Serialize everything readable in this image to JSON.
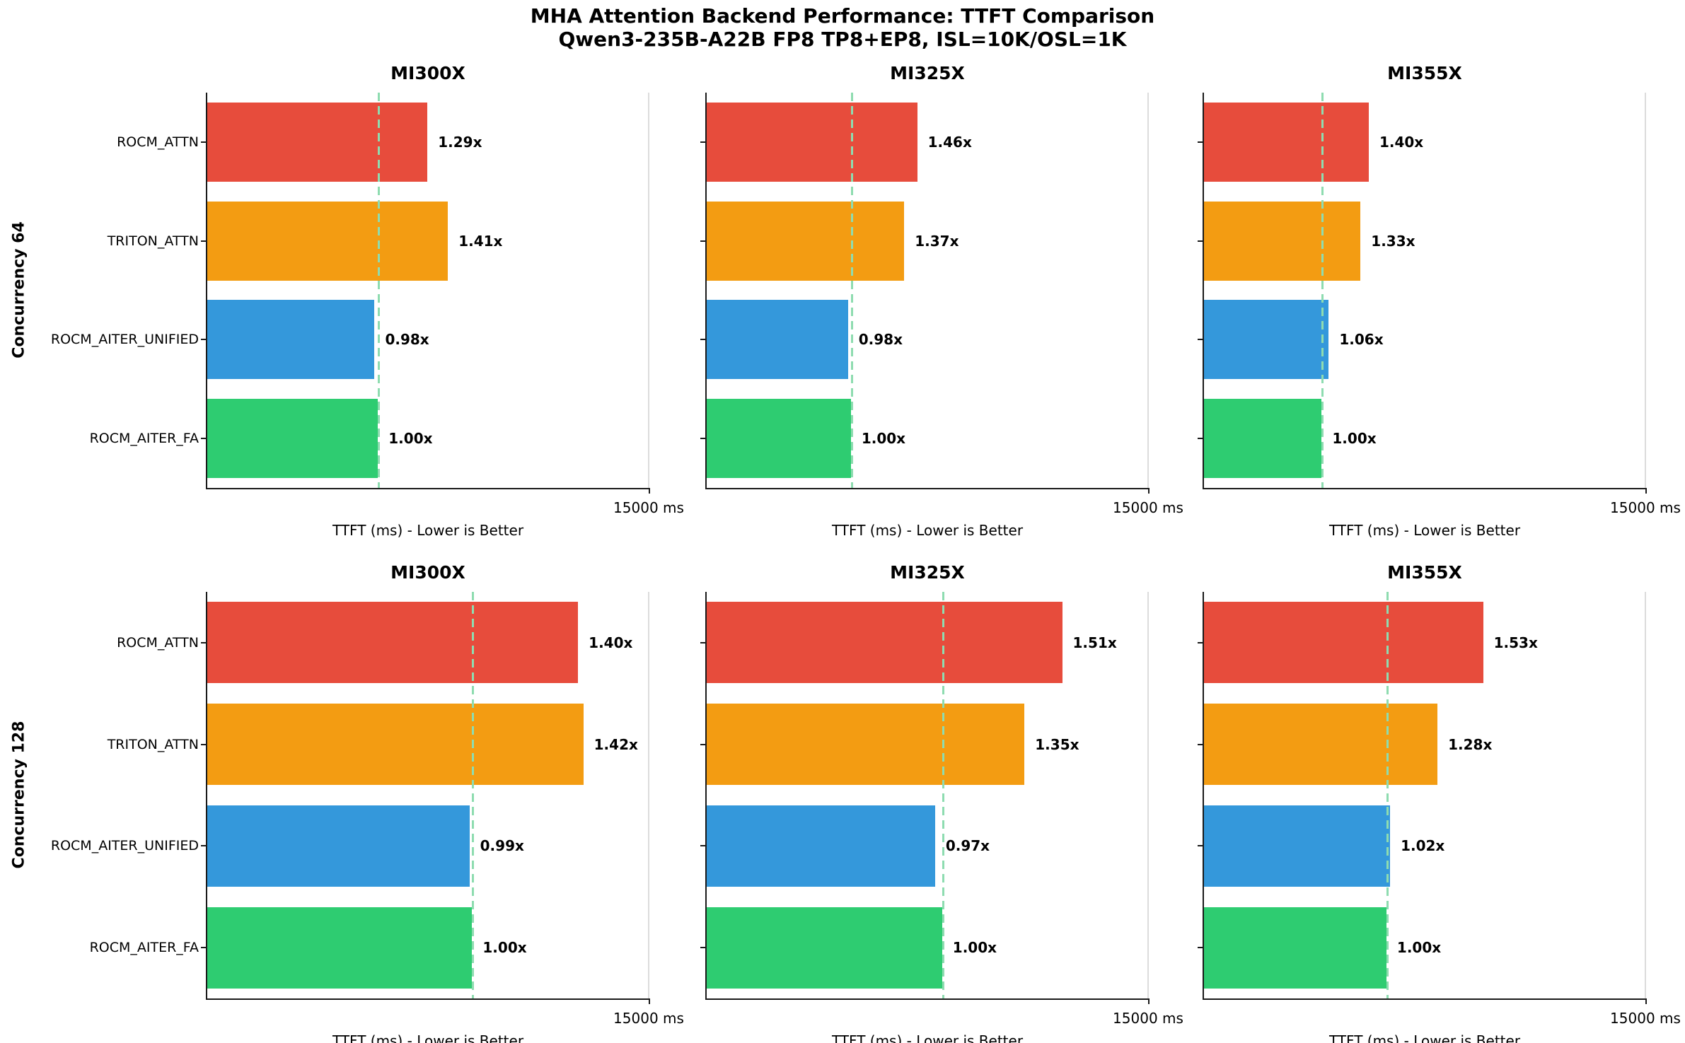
{
  "chart_data": {
    "type": "bar",
    "orientation": "horizontal",
    "title": "MHA Attention Backend Performance: TTFT Comparison",
    "subtitle": "Qwen3-235B-A22B FP8 TP8+EP8, ISL=10K/OSL=1K",
    "xlabel": "TTFT (ms) - Lower is Better",
    "xlim": [
      0,
      15000
    ],
    "x_tick_label": "15000 ms",
    "grid_on": false,
    "legend": "none",
    "categories": [
      "ROCM_ATTN",
      "TRITON_ATTN",
      "ROCM_AITER_UNIFIED",
      "ROCM_AITER_FA"
    ],
    "bar_colors": [
      "#e74c3c",
      "#f39c12",
      "#3498db",
      "#2ecc71"
    ],
    "baseline_color": "#8edcb0",
    "spine_color": "#1a1a1a",
    "axis_max_line_color": "#dcdcdc",
    "baseline_note": "dashed line marks ROCM_AITER_FA (1.00x) TTFT",
    "grid": [
      {
        "row_label": "Concurrency 64",
        "subplots": [
          {
            "title": "MI300X",
            "baseline_ttft_ms_est": 5800,
            "ratios": [
              1.29,
              1.41,
              0.98,
              1.0
            ],
            "speedup_labels": [
              "1.29x",
              "1.41x",
              "0.98x",
              "1.00x"
            ],
            "ttft_ms_est": [
              7480,
              8180,
              5680,
              5800
            ]
          },
          {
            "title": "MI325X",
            "baseline_ttft_ms_est": 4900,
            "ratios": [
              1.46,
              1.37,
              0.98,
              1.0
            ],
            "speedup_labels": [
              "1.46x",
              "1.37x",
              "0.98x",
              "1.00x"
            ],
            "ttft_ms_est": [
              7150,
              6710,
              4800,
              4900
            ]
          },
          {
            "title": "MI355X",
            "baseline_ttft_ms_est": 4000,
            "ratios": [
              1.4,
              1.33,
              1.06,
              1.0
            ],
            "speedup_labels": [
              "1.40x",
              "1.33x",
              "1.06x",
              "1.00x"
            ],
            "ttft_ms_est": [
              5600,
              5320,
              4240,
              4000
            ]
          }
        ]
      },
      {
        "row_label": "Concurrency 128",
        "subplots": [
          {
            "title": "MI300X",
            "baseline_ttft_ms_est": 9000,
            "ratios": [
              1.4,
              1.42,
              0.99,
              1.0
            ],
            "speedup_labels": [
              "1.40x",
              "1.42x",
              "0.99x",
              "1.00x"
            ],
            "ttft_ms_est": [
              12600,
              12780,
              8910,
              9000
            ]
          },
          {
            "title": "MI325X",
            "baseline_ttft_ms_est": 8000,
            "ratios": [
              1.51,
              1.35,
              0.97,
              1.0
            ],
            "speedup_labels": [
              "1.51x",
              "1.35x",
              "0.97x",
              "1.00x"
            ],
            "ttft_ms_est": [
              12080,
              10800,
              7760,
              8000
            ]
          },
          {
            "title": "MI355X",
            "baseline_ttft_ms_est": 6200,
            "ratios": [
              1.53,
              1.28,
              1.02,
              1.0
            ],
            "speedup_labels": [
              "1.53x",
              "1.28x",
              "1.02x",
              "1.00x"
            ],
            "ttft_ms_est": [
              9490,
              7940,
              6320,
              6200
            ]
          }
        ]
      }
    ]
  }
}
